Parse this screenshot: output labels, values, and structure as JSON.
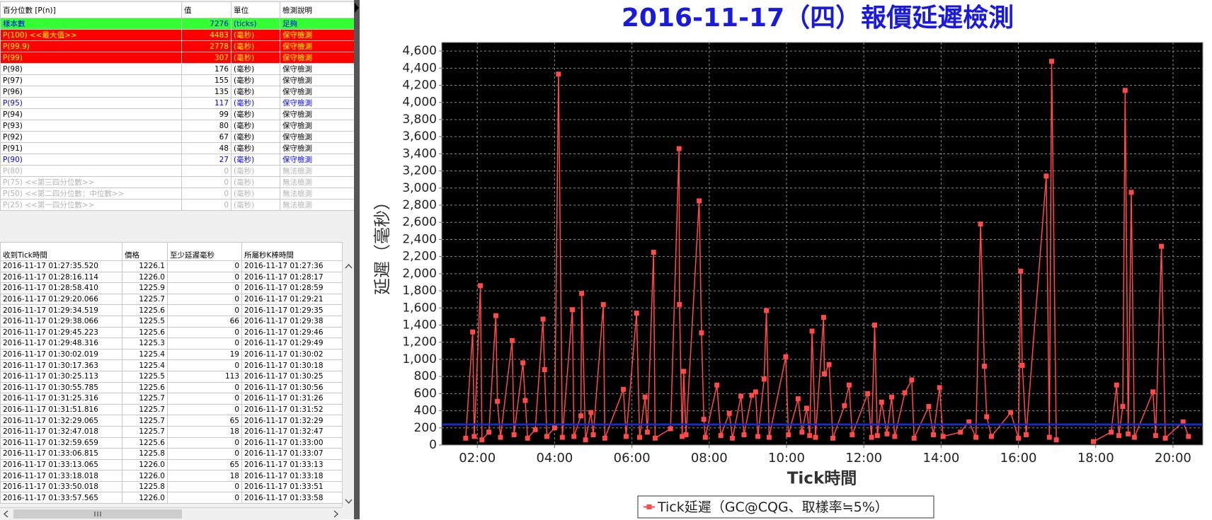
{
  "percentile_table": {
    "headers": [
      "百分位數 [P(n)]",
      "值",
      "單位",
      "檢測說明"
    ],
    "rows": [
      [
        "樣本數",
        7276,
        "(ticks)",
        "足夠"
      ],
      [
        "P(100)  <<最大值>>",
        4483,
        "(毫秒)",
        "保守檢測"
      ],
      [
        "P(99.9)",
        2778,
        "(毫秒)",
        "保守檢測"
      ],
      [
        "P(99)",
        307,
        "(毫秒)",
        "保守檢測"
      ],
      [
        "P(98)",
        176,
        "(毫秒)",
        "保守檢測"
      ],
      [
        "P(97)",
        155,
        "(毫秒)",
        "保守檢測"
      ],
      [
        "P(96)",
        135,
        "(毫秒)",
        "保守檢測"
      ],
      [
        "P(95)",
        117,
        "(毫秒)",
        "保守檢測"
      ],
      [
        "P(94)",
        99,
        "(毫秒)",
        "保守檢測"
      ],
      [
        "P(93)",
        80,
        "(毫秒)",
        "保守檢測"
      ],
      [
        "P(92)",
        67,
        "(毫秒)",
        "保守檢測"
      ],
      [
        "P(91)",
        48,
        "(毫秒)",
        "保守檢測"
      ],
      [
        "P(90)",
        27,
        "(毫秒)",
        "保守檢測"
      ],
      [
        "P(80)",
        0,
        "(毫秒)",
        "無法檢測"
      ],
      [
        "P(75)  <<第三四分位數>>",
        0,
        "(毫秒)",
        "無法檢測"
      ],
      [
        "P(50)  <<第二四分位數：中位數>>",
        0,
        "(毫秒)",
        "無法檢測"
      ],
      [
        "P(25)  <<第一四分位數>>",
        0,
        "(毫秒)",
        "無法檢測"
      ]
    ],
    "row_styles": [
      {
        "bg": "#33ff33",
        "fg": "#0000ff",
        "bold": false
      },
      {
        "bg": "#ff0000",
        "fg": "#ffff00",
        "bold": true
      },
      {
        "bg": "#ff0000",
        "fg": "#ffff00",
        "bold": true
      },
      {
        "bg": "#ff0000",
        "fg": "#ffff00",
        "bold": true
      },
      {
        "bg": "#ffffff",
        "fg": "#000000",
        "bold": false
      },
      {
        "bg": "#ffffff",
        "fg": "#000000",
        "bold": false
      },
      {
        "bg": "#ffffff",
        "fg": "#000000",
        "bold": false
      },
      {
        "bg": "#ffffff",
        "fg": "#0000ff",
        "bold": true
      },
      {
        "bg": "#ffffff",
        "fg": "#000000",
        "bold": false
      },
      {
        "bg": "#ffffff",
        "fg": "#000000",
        "bold": false
      },
      {
        "bg": "#ffffff",
        "fg": "#000000",
        "bold": false
      },
      {
        "bg": "#ffffff",
        "fg": "#000000",
        "bold": false
      },
      {
        "bg": "#ffffff",
        "fg": "#0000ff",
        "bold": true
      },
      {
        "bg": "#ffffff",
        "fg": "#b4b4b4",
        "bold": false
      },
      {
        "bg": "#ffffff",
        "fg": "#b4b4b4",
        "bold": false
      },
      {
        "bg": "#ffffff",
        "fg": "#b4b4b4",
        "bold": false
      },
      {
        "bg": "#ffffff",
        "fg": "#b4b4b4",
        "bold": false
      }
    ]
  },
  "tick_table": {
    "headers": [
      "收到Tick時間",
      "價格",
      "至少延遲毫秒",
      "所屬秒K棒時間"
    ],
    "rows": [
      [
        "2016-11-17 01:27:35.520",
        "1226.1",
        0,
        "2016-11-17 01:27:36"
      ],
      [
        "2016-11-17 01:28:16.114",
        "1226.0",
        0,
        "2016-11-17 01:28:17"
      ],
      [
        "2016-11-17 01:28:58.410",
        "1225.9",
        0,
        "2016-11-17 01:28:59"
      ],
      [
        "2016-11-17 01:29:20.066",
        "1225.7",
        0,
        "2016-11-17 01:29:21"
      ],
      [
        "2016-11-17 01:29:34.519",
        "1225.6",
        0,
        "2016-11-17 01:29:35"
      ],
      [
        "2016-11-17 01:29:38.066",
        "1225.5",
        66,
        "2016-11-17 01:29:38"
      ],
      [
        "2016-11-17 01:29:45.223",
        "1225.6",
        0,
        "2016-11-17 01:29:46"
      ],
      [
        "2016-11-17 01:29:48.316",
        "1225.3",
        0,
        "2016-11-17 01:29:49"
      ],
      [
        "2016-11-17 01:30:02.019",
        "1225.4",
        19,
        "2016-11-17 01:30:02"
      ],
      [
        "2016-11-17 01:30:17.363",
        "1225.4",
        0,
        "2016-11-17 01:30:18"
      ],
      [
        "2016-11-17 01:30:25.113",
        "1225.5",
        113,
        "2016-11-17 01:30:25"
      ],
      [
        "2016-11-17 01:30:55.785",
        "1225.6",
        0,
        "2016-11-17 01:30:56"
      ],
      [
        "2016-11-17 01:31:25.316",
        "1225.7",
        0,
        "2016-11-17 01:31:26"
      ],
      [
        "2016-11-17 01:31:51.816",
        "1225.7",
        0,
        "2016-11-17 01:31:52"
      ],
      [
        "2016-11-17 01:32:29.065",
        "1225.7",
        65,
        "2016-11-17 01:32:29"
      ],
      [
        "2016-11-17 01:32:47.018",
        "1225.7",
        18,
        "2016-11-17 01:32:47"
      ],
      [
        "2016-11-17 01:32:59.659",
        "1225.6",
        0,
        "2016-11-17 01:33:00"
      ],
      [
        "2016-11-17 01:33:06.815",
        "1225.8",
        0,
        "2016-11-17 01:33:07"
      ],
      [
        "2016-11-17 01:33:13.065",
        "1226.0",
        65,
        "2016-11-17 01:33:13"
      ],
      [
        "2016-11-17 01:33:18.018",
        "1226.0",
        18,
        "2016-11-17 01:33:18"
      ],
      [
        "2016-11-17 01:33:50.018",
        "1225.8",
        0,
        "2016-11-17 01:33:51"
      ],
      [
        "2016-11-17 01:33:57.565",
        "1226.0",
        0,
        "2016-11-17 01:33:58"
      ]
    ]
  },
  "chart_data": {
    "type": "line",
    "title": "2016-11-17（四）報價延遲檢測",
    "title_color": "#1a1adc",
    "ylabel": "延遲（毫秒）",
    "xlabel": "Tick時間",
    "background": "#000000",
    "grid": true,
    "xlim": [
      1.08,
      20.77
    ],
    "ylim": [
      0,
      4700
    ],
    "xticks": [
      {
        "value": 2,
        "label": "02:00"
      },
      {
        "value": 4,
        "label": "04:00"
      },
      {
        "value": 6,
        "label": "06:00"
      },
      {
        "value": 8,
        "label": "08:00"
      },
      {
        "value": 10,
        "label": "10:00"
      },
      {
        "value": 12,
        "label": "12:00"
      },
      {
        "value": 14,
        "label": "14:00"
      },
      {
        "value": 16,
        "label": "16:00"
      },
      {
        "value": 18,
        "label": "18:00"
      },
      {
        "value": 20,
        "label": "20:00"
      }
    ],
    "yticks": [
      0,
      200,
      400,
      600,
      800,
      {
        "value": 1000,
        "label": "1,000"
      },
      {
        "value": 1200,
        "label": "1,200"
      },
      {
        "value": 1400,
        "label": "1,400"
      },
      {
        "value": 1600,
        "label": "1,600"
      },
      {
        "value": 1800,
        "label": "1,800"
      },
      {
        "value": 2000,
        "label": "2,000"
      },
      {
        "value": 2200,
        "label": "2,200"
      },
      {
        "value": 2400,
        "label": "2,400"
      },
      {
        "value": 2600,
        "label": "2,600"
      },
      {
        "value": 2800,
        "label": "2,800"
      },
      {
        "value": 3000,
        "label": "3,000"
      },
      {
        "value": 3200,
        "label": "3,200"
      },
      {
        "value": 3400,
        "label": "3,400"
      },
      {
        "value": 3600,
        "label": "3,600"
      },
      {
        "value": 3800,
        "label": "3,800"
      },
      {
        "value": 4000,
        "label": "4,000"
      },
      {
        "value": 4200,
        "label": "4,200"
      },
      {
        "value": 4400,
        "label": "4,400"
      },
      {
        "value": 4600,
        "label": "4,600"
      }
    ],
    "reference_line": {
      "value": 240,
      "color": "#1c2bb8"
    },
    "legend": "bottom",
    "series": [
      {
        "name": "Tick延遲（GC@CQG、取樣率≒5%）",
        "color": "#ff4a4a",
        "x": [
          1.7,
          1.88,
          1.92,
          2.08,
          2.12,
          2.3,
          2.48,
          2.52,
          2.6,
          2.9,
          2.95,
          3.18,
          3.24,
          3.3,
          3.5,
          3.7,
          3.74,
          3.8,
          4.0,
          4.1,
          4.2,
          4.46,
          4.5,
          4.68,
          4.7,
          4.8,
          4.94,
          5.0,
          5.26,
          5.3,
          5.78,
          5.85,
          6.12,
          6.2,
          6.34,
          6.4,
          6.56,
          6.6,
          7.0,
          7.22,
          7.23,
          7.3,
          7.34,
          7.4,
          7.74,
          7.8,
          7.86,
          7.9,
          8.2,
          8.3,
          8.52,
          8.6,
          8.82,
          8.9,
          9.1,
          9.2,
          9.26,
          9.42,
          9.48,
          9.55,
          9.98,
          10.05,
          10.3,
          10.4,
          10.52,
          10.6,
          10.66,
          10.75,
          10.96,
          10.98,
          11.1,
          11.2,
          11.5,
          11.62,
          11.7,
          12.1,
          12.2,
          12.28,
          12.35,
          12.46,
          12.6,
          12.72,
          12.8,
          13.06,
          13.24,
          13.3,
          13.68,
          13.8,
          13.96,
          14.05,
          14.5,
          14.72,
          14.9,
          15.02,
          15.12,
          15.18,
          15.3,
          15.8,
          16.0,
          16.06,
          16.1,
          16.2,
          16.72,
          16.8,
          16.86,
          16.98,
          17.4,
          17.94,
          18.4,
          18.54,
          18.6,
          18.7,
          18.76,
          18.84,
          18.92,
          19.0,
          19.48,
          19.55,
          19.7,
          19.8,
          20.26,
          20.4
        ],
        "values": [
          80,
          1320,
          100,
          1860,
          60,
          150,
          1510,
          510,
          90,
          1220,
          120,
          960,
          520,
          80,
          180,
          1470,
          880,
          100,
          200,
          4330,
          90,
          1580,
          100,
          340,
          1770,
          60,
          380,
          120,
          1640,
          80,
          650,
          100,
          1540,
          90,
          560,
          150,
          2250,
          80,
          190,
          3460,
          1640,
          100,
          860,
          120,
          2850,
          1310,
          300,
          90,
          700,
          110,
          370,
          80,
          570,
          120,
          580,
          620,
          100,
          770,
          1570,
          90,
          1030,
          120,
          540,
          150,
          430,
          110,
          1330,
          90,
          1490,
          830,
          940,
          80,
          460,
          700,
          120,
          600,
          90,
          1400,
          110,
          500,
          130,
          560,
          100,
          610,
          760,
          80,
          450,
          120,
          670,
          100,
          150,
          270,
          90,
          2580,
          920,
          330,
          100,
          380,
          80,
          2030,
          930,
          120,
          3140,
          90,
          4480,
          60,
          null,
          40,
          150,
          700,
          110,
          450,
          4140,
          130,
          2950,
          90,
          620,
          110,
          2320,
          80,
          270,
          100
        ]
      }
    ]
  }
}
